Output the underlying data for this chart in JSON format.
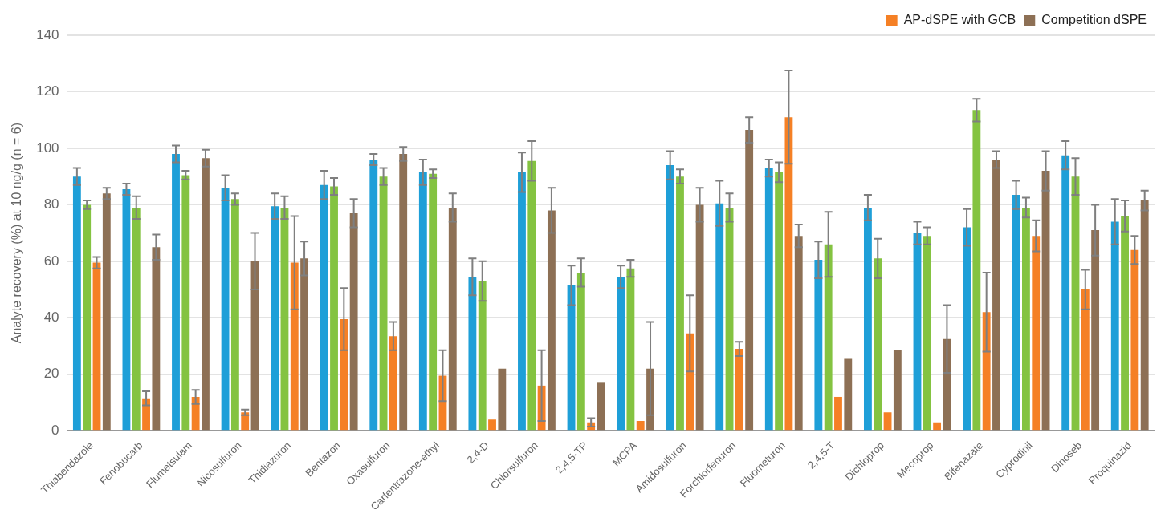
{
  "chart_data": {
    "type": "bar",
    "ylabel": "Analyte recovery (%) at 10 ng/g (n = 6)",
    "categories": [
      "Thiabendazole",
      "Fenobucarb",
      "Flumetsulam",
      "Nicosulfuron",
      "Thidiazuron",
      "Bentazon",
      "Oxasulfuron",
      "Carfentrazone-ethyl",
      "2,4-D",
      "Chlorsulfuron",
      "2,4,5-TP",
      "MCPA",
      "Amidosulfuron",
      "Forchlorfenuron",
      "Fluometuron",
      "2,4,5-T",
      "Dichloprop",
      "Mecoprop",
      "Bifenazate",
      "Cyprodinil",
      "Dinoseb",
      "Proquinazid"
    ],
    "series": [
      {
        "color": "#1e9fd8",
        "values": [
          90,
          85.5,
          98,
          86,
          79.5,
          87,
          96,
          91.5,
          54.5,
          91.5,
          51.5,
          54.5,
          94,
          80.5,
          93,
          60.5,
          79,
          70,
          72,
          83.5,
          97.5,
          74
        ],
        "errors": [
          3,
          2,
          3,
          4.5,
          4.5,
          5,
          2,
          4.5,
          6.5,
          7,
          7,
          4,
          5,
          8,
          3,
          6.5,
          4.5,
          4,
          6.5,
          5,
          5,
          8
        ]
      },
      {
        "color": "#84c341",
        "values": [
          80,
          79,
          90.5,
          82,
          79,
          86.5,
          90,
          91,
          53,
          95.5,
          56,
          57.5,
          90,
          79,
          91.5,
          66,
          61,
          69,
          113.5,
          79,
          90,
          76
        ],
        "errors": [
          1.5,
          4,
          1.5,
          2,
          4,
          3,
          3,
          1.5,
          7,
          7,
          5,
          3,
          2.5,
          5,
          3.5,
          11.5,
          7,
          3,
          4,
          3.5,
          6.5,
          5.5
        ]
      },
      {
        "name": "AP-dSPE with GCB",
        "color": "#f58025",
        "values": [
          59.5,
          11.5,
          12,
          6.5,
          59.5,
          39.5,
          33.5,
          19.5,
          4,
          16,
          3,
          3.5,
          34.5,
          29,
          111,
          12,
          6.5,
          3,
          42,
          69,
          50,
          64
        ],
        "errors": [
          2,
          2.5,
          2.5,
          1,
          16.5,
          11,
          5,
          9,
          null,
          12.5,
          1.5,
          null,
          13.5,
          2.5,
          16.5,
          null,
          null,
          null,
          14,
          5.5,
          7,
          5
        ]
      },
      {
        "name": "Competition dSPE",
        "color": "#8d7055",
        "values": [
          84,
          65,
          96.5,
          60,
          61,
          77,
          98,
          79,
          22,
          78,
          17,
          22,
          80,
          106.5,
          69,
          25.5,
          28.5,
          32.5,
          96,
          92,
          71,
          81.5
        ],
        "errors": [
          2,
          4.5,
          3,
          10,
          6,
          5,
          2.5,
          5,
          null,
          8,
          null,
          16.5,
          6,
          4.5,
          4,
          null,
          null,
          12,
          3,
          7,
          9,
          3.5
        ]
      }
    ],
    "ylim": [
      0,
      140
    ],
    "yticks": [
      0,
      20,
      40,
      60,
      80,
      100,
      120,
      140
    ],
    "grid": "y",
    "legend": "top right"
  }
}
